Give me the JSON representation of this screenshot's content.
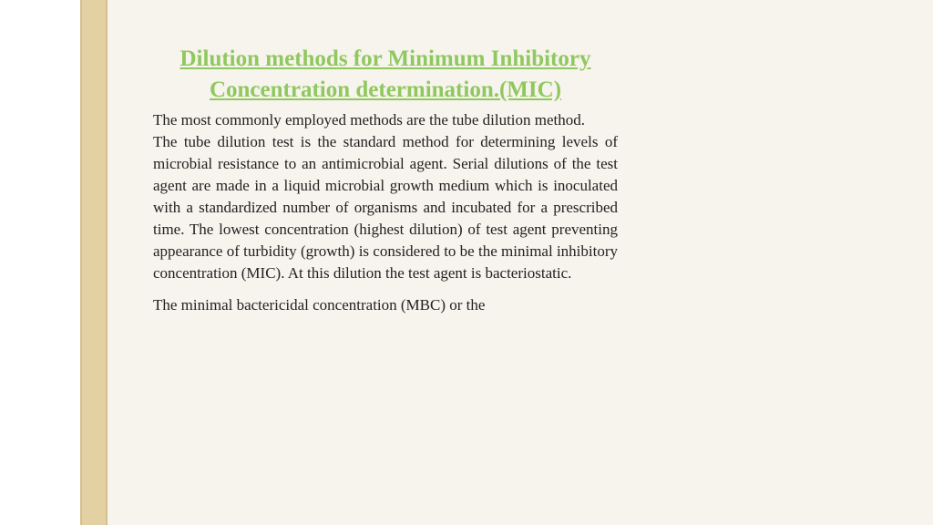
{
  "document": {
    "title": "Dilution methods for Minimum Inhibitory Concentration determination.(MIC)",
    "paragraphs": [
      "The most commonly employed methods are the tube dilution method.",
      "The tube dilution test is the standard method for determining levels of microbial resistance to an antimicrobial agent. Serial dilutions of the test agent are made in a liquid microbial growth medium which is inoculated with a standardized number of organisms and incubated for a prescribed time. The lowest concentration (highest dilution) of test agent preventing appearance of turbidity (growth) is considered to be the minimal inhibitory concentration (MIC). At this dilution the test agent is bacteriostatic.",
      "The minimal bactericidal concentration (MBC) or the"
    ],
    "colors": {
      "title_color": "#8fc85e",
      "text_color": "#222222",
      "page_background": "#f7f3ed",
      "strip_color": "#e3d0a3",
      "left_background": "#ffffff"
    },
    "typography": {
      "title_fontsize": 25,
      "body_fontsize": 17,
      "font_family": "Georgia, serif"
    }
  }
}
